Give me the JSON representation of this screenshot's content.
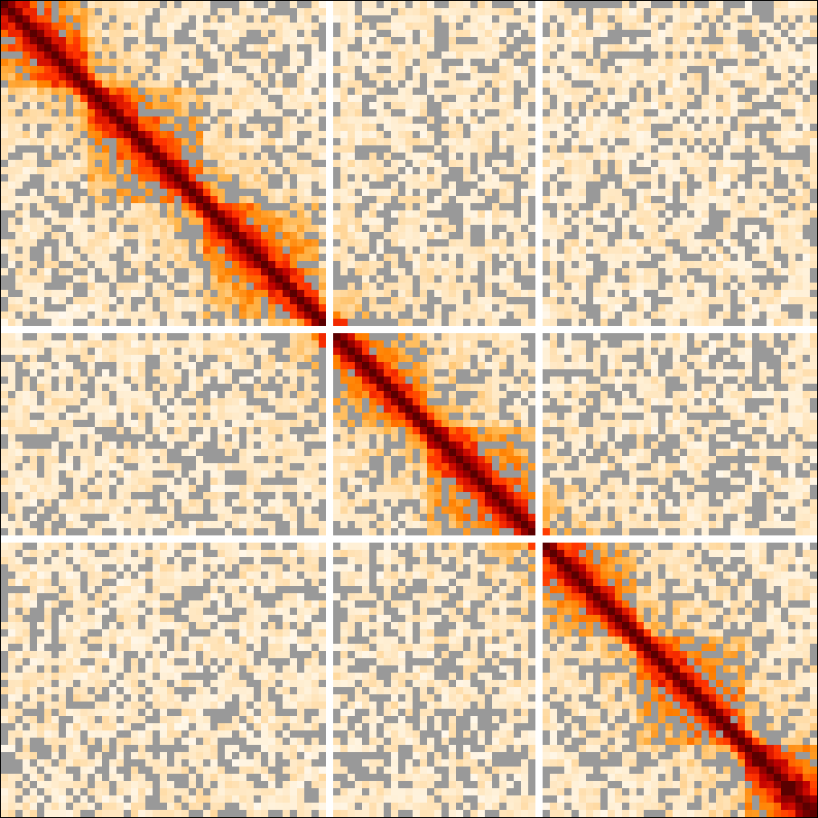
{
  "chart_data": {
    "type": "heatmap",
    "title": "",
    "xlabel": "",
    "ylabel": "",
    "matrix_size": [
      113,
      113
    ],
    "symmetric": true,
    "grid": false,
    "legend": "none",
    "missing_value_color": "#999999",
    "colormap": [
      "#ffffff",
      "#fff0d6",
      "#ffd9a0",
      "#ffb347",
      "#ff8000",
      "#ff3300",
      "#c00000",
      "#5a0000"
    ],
    "value_range": [
      0,
      1
    ],
    "masked_rows": [
      45,
      74
    ],
    "dense_gap_rows": [
      44,
      46,
      59,
      60,
      61,
      73,
      75,
      101,
      102,
      103,
      104,
      105
    ],
    "domain_blocks": [
      {
        "start": 0,
        "end": 12,
        "strength": 0.58
      },
      {
        "start": 12,
        "end": 28,
        "strength": 0.5
      },
      {
        "start": 28,
        "end": 44,
        "strength": 0.48
      },
      {
        "start": 44,
        "end": 59,
        "strength": 0.45
      },
      {
        "start": 59,
        "end": 74,
        "strength": 0.55
      },
      {
        "start": 74,
        "end": 88,
        "strength": 0.5
      },
      {
        "start": 88,
        "end": 103,
        "strength": 0.5
      },
      {
        "start": 103,
        "end": 113,
        "strength": 0.65
      }
    ]
  }
}
